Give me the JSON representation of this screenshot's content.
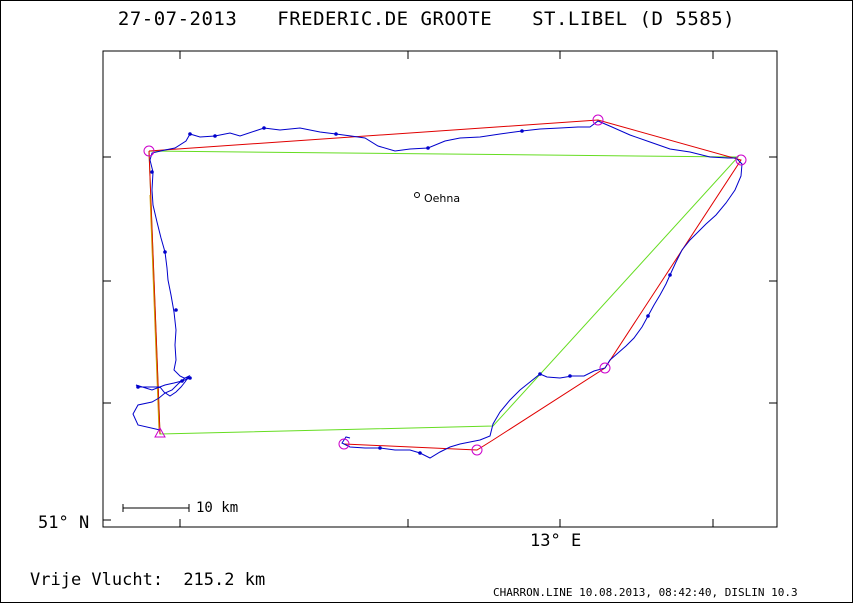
{
  "header": {
    "date": "27-07-2013",
    "pilot": "FREDERIC.DE GROOTE",
    "glider": "ST.LIBEL (D 5585)"
  },
  "map": {
    "lat_label": "51° N",
    "lon_label": "13° E",
    "scale_label": "10 km",
    "place_label": "Oehna",
    "colors": {
      "frame": "#000000",
      "track": "#0000cc",
      "task_red": "#e00000",
      "task_green": "#66dd22",
      "turnpoint": "#cc00cc"
    }
  },
  "footer": {
    "flight_label": "Vrije Vlucht:",
    "distance": "215.2 km",
    "credit": "CHARRON.LINE 10.08.2013, 08:42:40, DISLIN 10.3"
  }
}
